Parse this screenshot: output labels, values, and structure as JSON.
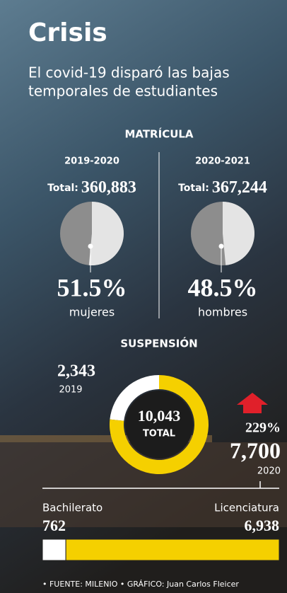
{
  "header": {
    "title": "Crisis",
    "subtitle_lines": [
      "El covid-19 disparó las bajas",
      "temporales de estudiantes"
    ]
  },
  "chart_data": [
    {
      "type": "pie",
      "title": "MATRÍCULA",
      "subtitle": "2019-2020",
      "total_label": "Total:",
      "total": "360,883",
      "categories": [
        "mujeres"
      ],
      "values": [
        51.5
      ],
      "value_labels": [
        "51.5%"
      ],
      "color": "#e4e4e4"
    },
    {
      "type": "pie",
      "subtitle": "2020-2021",
      "total_label": "Total:",
      "total": "367,244",
      "categories": [
        "hombres"
      ],
      "values": [
        48.5
      ],
      "value_labels": [
        "48.5%"
      ],
      "color": "#e4e4e4"
    },
    {
      "type": "donut",
      "title": "SUSPENSIÓN",
      "categories": [
        "2019",
        "2020"
      ],
      "values": [
        2343,
        7700
      ],
      "value_labels": [
        "2,343",
        "7,700"
      ],
      "colors": [
        "#ffffff",
        "#f5d000"
      ],
      "center_value": "10,043",
      "center_label": "TOTAL",
      "annotation": "229%"
    },
    {
      "type": "stacked-bar",
      "categories": [
        "Bachilerato",
        "Licenciatura"
      ],
      "values": [
        762,
        6938
      ],
      "value_labels": [
        "762",
        "6,938"
      ],
      "colors": [
        "#ffffff",
        "#f5d000"
      ]
    }
  ],
  "source": "• FUENTE: MILENIO • GRÁFICO: Juan Carlos Fleicer"
}
